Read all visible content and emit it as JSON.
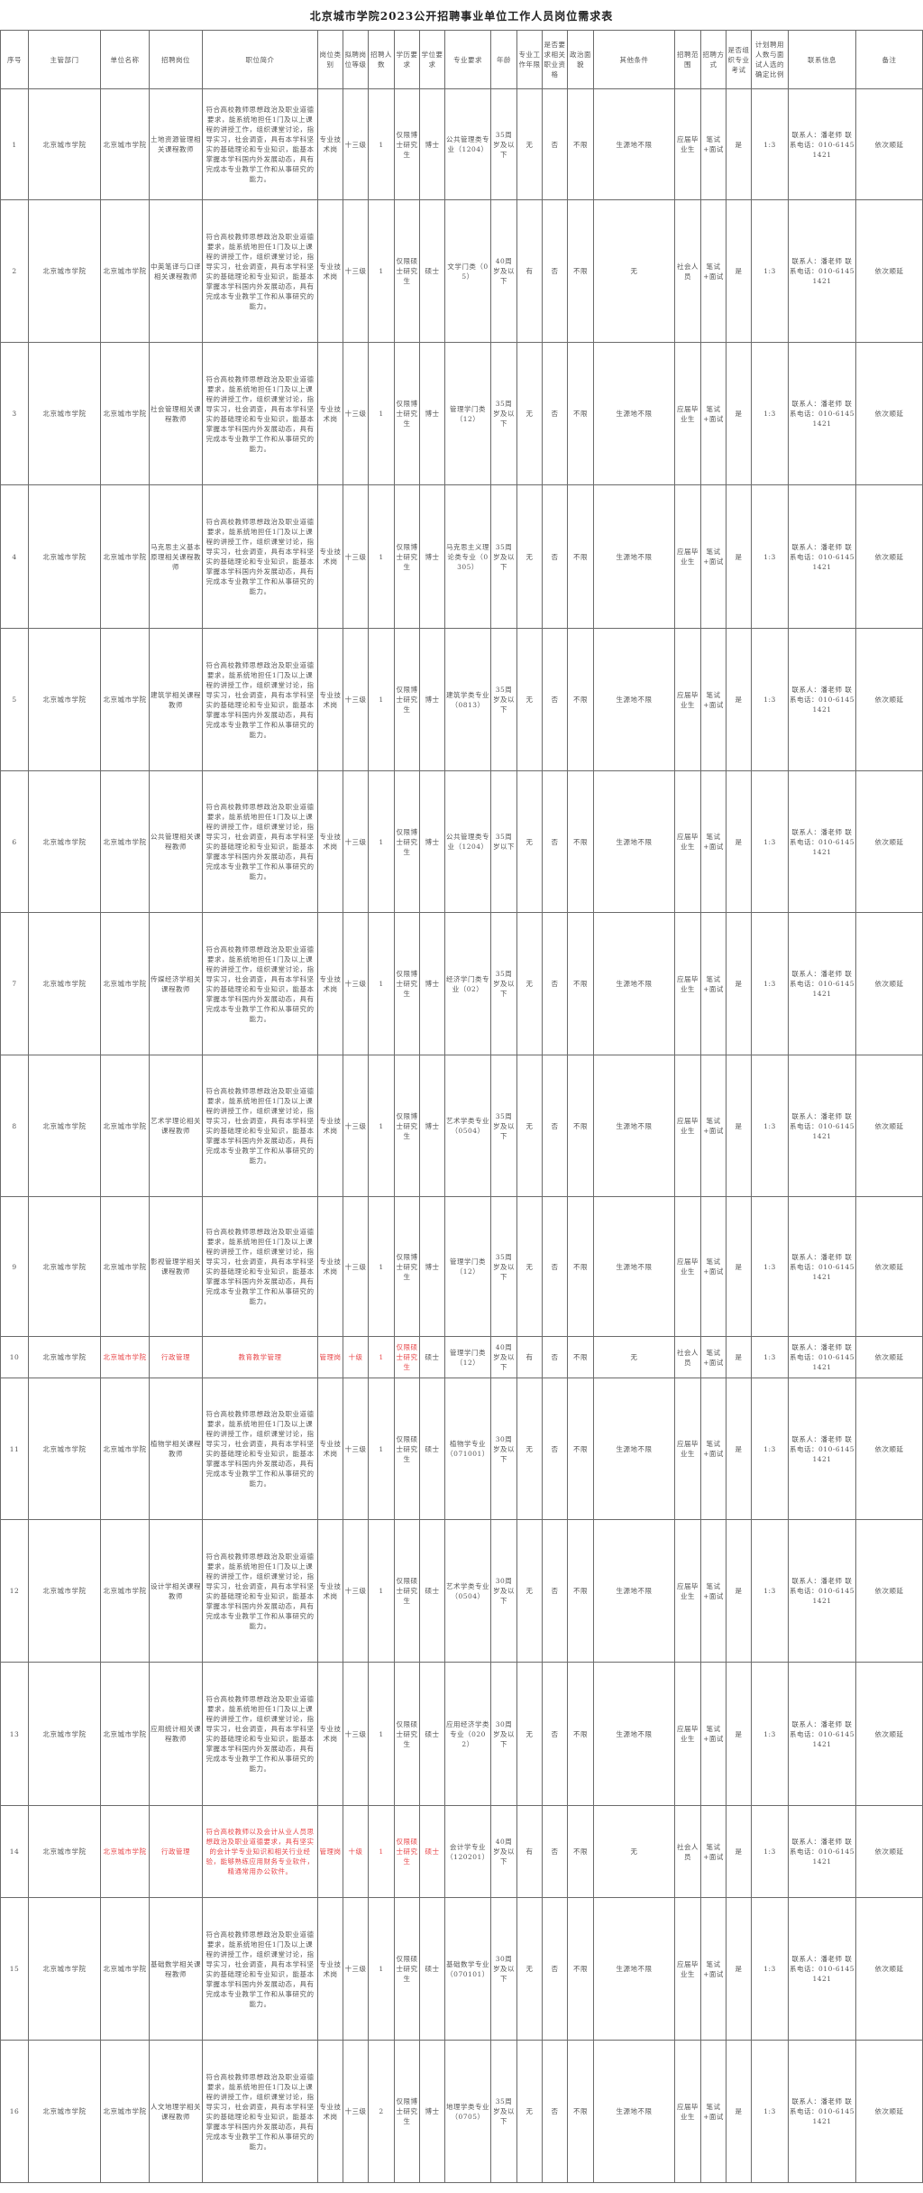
{
  "title": "北京城市学院2023公开招聘事业单位工作人员岗位需求表",
  "highlight_color": "#e8474a",
  "columns": [
    {
      "key": "no",
      "label": "序号"
    },
    {
      "key": "dept",
      "label": "主管部门"
    },
    {
      "key": "unit",
      "label": "单位名称"
    },
    {
      "key": "post",
      "label": "招聘岗位"
    },
    {
      "key": "intro",
      "label": "职位简介"
    },
    {
      "key": "category",
      "label": "岗位类别"
    },
    {
      "key": "level",
      "label": "拟聘岗位等级"
    },
    {
      "key": "count",
      "label": "招聘人数"
    },
    {
      "key": "education",
      "label": "学历要求"
    },
    {
      "key": "degree",
      "label": "学位要求"
    },
    {
      "key": "major",
      "label": "专业要求"
    },
    {
      "key": "age",
      "label": "年龄"
    },
    {
      "key": "years",
      "label": "专业工作年限"
    },
    {
      "key": "qualification",
      "label": "是否要求相关职业资格"
    },
    {
      "key": "political",
      "label": "政治面貌"
    },
    {
      "key": "other",
      "label": "其他条件"
    },
    {
      "key": "scope",
      "label": "招聘范围"
    },
    {
      "key": "method",
      "label": "招聘方式"
    },
    {
      "key": "exam",
      "label": "是否组织专业考试"
    },
    {
      "key": "ratio",
      "label": "计划聘用人数与面试人选的确定比例"
    },
    {
      "key": "contact",
      "label": "联系信息"
    },
    {
      "key": "remark",
      "label": "备注"
    }
  ],
  "common": {
    "dept": "北京城市学院",
    "unit": "北京城市学院",
    "teacher_intro": "符合高校教师思想政治及职业道德要求，能系统地担任1门及以上课程的讲授工作，组织课堂讨论，指导实习，社会调查，具有本学科坚实的基础理论和专业知识，能基本掌握本学科国内外发展动态，具有完成本专业教学工作和从事研究的能力。",
    "contact": "联系人：潘老师 联系电话：010-61451421",
    "remark": "依次顺延",
    "method": "笔试+面试",
    "exam": "是",
    "ratio": "1:3",
    "qualification": "否",
    "political": "不限"
  },
  "rows": [
    {
      "no": "1",
      "post": "土地资源管理相关课程教师",
      "intro": "符合高校教师思想政治及职业道德要求，能系统地担任1门及以上课程的讲授工作，组织课堂讨论，指导实习，社会调查，具有本学科坚实的基础理论和专业知识，能基本掌握本学科国内外发展动态，具有完成本专业教学工作和从事研究的能力。",
      "category": "专业技术岗",
      "level": "十三级",
      "count": "1",
      "education": "仅限博士研究生",
      "degree": "博士",
      "major": "公共管理类专业（1204）",
      "age": "35周岁及以下",
      "years": "无",
      "other": "生源地不限",
      "scope": "应届毕业生",
      "red": []
    },
    {
      "no": "2",
      "post": "中英笔译与口译相关课程教师",
      "intro": "符合高校教师思想政治及职业道德要求，能系统地担任1门及以上课程的讲授工作，组织课堂讨论，指导实习，社会调查，具有本学科坚实的基础理论和专业知识，能基本掌握本学科国内外发展动态，具有完成本专业教学工作和从事研究的能力。",
      "category": "专业技术岗",
      "level": "十三级",
      "count": "1",
      "education": "仅限硕士研究生",
      "degree": "硕士",
      "major": "文学门类（05）",
      "age": "40周岁及以下",
      "years": "有",
      "other": "无",
      "scope": "社会人员",
      "red": []
    },
    {
      "no": "3",
      "post": "社会管理相关课程教师",
      "intro": "符合高校教师思想政治及职业道德要求，能系统地担任1门及以上课程的讲授工作，组织课堂讨论，指导实习，社会调查，具有本学科坚实的基础理论和专业知识，能基本掌握本学科国内外发展动态，具有完成本专业教学工作和从事研究的能力。",
      "category": "专业技术岗",
      "level": "十三级",
      "count": "1",
      "education": "仅限博士研究生",
      "degree": "博士",
      "major": "管理学门类（12）",
      "age": "35周岁及以下",
      "years": "无",
      "other": "生源地不限",
      "scope": "应届毕业生",
      "red": []
    },
    {
      "no": "4",
      "post": "马克思主义基本原理相关课程教师",
      "intro": "符合高校教师思想政治及职业道德要求，能系统地担任1门及以上课程的讲授工作，组织课堂讨论，指导实习，社会调查，具有本学科坚实的基础理论和专业知识，能基本掌握本学科国内外发展动态，具有完成本专业教学工作和从事研究的能力。",
      "category": "专业技术岗",
      "level": "十三级",
      "count": "1",
      "education": "仅限博士研究生",
      "degree": "博士",
      "major": "马克思主义理论类专业（0305）",
      "age": "35周岁及以下",
      "years": "无",
      "other": "生源地不限",
      "scope": "应届毕业生",
      "red": []
    },
    {
      "no": "5",
      "post": "建筑学相关课程教师",
      "intro": "符合高校教师思想政治及职业道德要求，能系统地担任1门及以上课程的讲授工作，组织课堂讨论，指导实习，社会调查，具有本学科坚实的基础理论和专业知识，能基本掌握本学科国内外发展动态，具有完成本专业教学工作和从事研究的能力。",
      "category": "专业技术岗",
      "level": "十三级",
      "count": "1",
      "education": "仅限博士研究生",
      "degree": "博士",
      "major": "建筑学类专业（0813）",
      "age": "35周岁及以下",
      "years": "无",
      "other": "生源地不限",
      "scope": "应届毕业生",
      "red": []
    },
    {
      "no": "6",
      "post": "公共管理相关课程教师",
      "intro": "符合高校教师思想政治及职业道德要求，能系统地担任1门及以上课程的讲授工作，组织课堂讨论，指导实习，社会调查，具有本学科坚实的基础理论和专业知识，能基本掌握本学科国内外发展动态，具有完成本专业教学工作和从事研究的能力。",
      "category": "专业技术岗",
      "level": "十三级",
      "count": "1",
      "education": "仅限博士研究生",
      "degree": "博士",
      "major": "公共管理类专业（1204）",
      "age": "35周岁以下",
      "years": "无",
      "other": "生源地不限",
      "scope": "应届毕业生",
      "red": []
    },
    {
      "no": "7",
      "post": "传媒经济学相关课程教师",
      "intro": "符合高校教师思想政治及职业道德要求，能系统地担任1门及以上课程的讲授工作，组织课堂讨论，指导实习，社会调查，具有本学科坚实的基础理论和专业知识，能基本掌握本学科国内外发展动态，具有完成本专业教学工作和从事研究的能力。",
      "category": "专业技术岗",
      "level": "十三级",
      "count": "1",
      "education": "仅限博士研究生",
      "degree": "博士",
      "major": "经济学门类专业（02）",
      "age": "35周岁及以下",
      "years": "无",
      "other": "生源地不限",
      "scope": "应届毕业生",
      "red": []
    },
    {
      "no": "8",
      "post": "艺术学理论相关课程教师",
      "intro": "符合高校教师思想政治及职业道德要求，能系统地担任1门及以上课程的讲授工作，组织课堂讨论，指导实习，社会调查，具有本学科坚实的基础理论和专业知识，能基本掌握本学科国内外发展动态，具有完成本专业教学工作和从事研究的能力。",
      "category": "专业技术岗",
      "level": "十三级",
      "count": "1",
      "education": "仅限博士研究生",
      "degree": "博士",
      "major": "艺术学类专业（0504）",
      "age": "35周岁及以下",
      "years": "无",
      "other": "生源地不限",
      "scope": "应届毕业生",
      "red": []
    },
    {
      "no": "9",
      "post": "影视管理学相关课程教师",
      "intro": "符合高校教师思想政治及职业道德要求，能系统地担任1门及以上课程的讲授工作，组织课堂讨论，指导实习，社会调查，具有本学科坚实的基础理论和专业知识，能基本掌握本学科国内外发展动态，具有完成本专业教学工作和从事研究的能力。",
      "category": "专业技术岗",
      "level": "十三级",
      "count": "1",
      "education": "仅限博士研究生",
      "degree": "博士",
      "major": "管理学门类（12）",
      "age": "35周岁及以下",
      "years": "无",
      "other": "生源地不限",
      "scope": "应届毕业生",
      "red": []
    },
    {
      "no": "10",
      "post": "行政管理",
      "intro": "教育教学管理",
      "category": "管理岗",
      "level": "十级",
      "count": "1",
      "education": "仅限硕士研究生",
      "degree": "硕士",
      "major": "管理学门类（12）",
      "age": "40周岁及以下",
      "years": "有",
      "other": "无",
      "scope": "社会人员",
      "red": [
        "unit",
        "post",
        "intro",
        "category",
        "level",
        "count",
        "education"
      ]
    },
    {
      "no": "11",
      "post": "植物学相关课程教师",
      "intro": "符合高校教师思想政治及职业道德要求，能系统地担任1门及以上课程的讲授工作，组织课堂讨论，指导实习，社会调查，具有本学科坚实的基础理论和专业知识，能基本掌握本学科国内外发展动态，具有完成本专业教学工作和从事研究的能力。",
      "category": "专业技术岗",
      "level": "十三级",
      "count": "1",
      "education": "仅限硕士研究生",
      "degree": "硕士",
      "major": "植物学专业（071001）",
      "age": "30周岁及以下",
      "years": "无",
      "other": "生源地不限",
      "scope": "应届毕业生",
      "red": []
    },
    {
      "no": "12",
      "post": "设计学相关课程教师",
      "intro": "符合高校教师思想政治及职业道德要求，能系统地担任1门及以上课程的讲授工作，组织课堂讨论，指导实习，社会调查，具有本学科坚实的基础理论和专业知识，能基本掌握本学科国内外发展动态，具有完成本专业教学工作和从事研究的能力。",
      "category": "专业技术岗",
      "level": "十三级",
      "count": "1",
      "education": "仅限硕士研究生",
      "degree": "硕士",
      "major": "艺术学类专业（0504）",
      "age": "30周岁及以下",
      "years": "无",
      "other": "生源地不限",
      "scope": "应届毕业生",
      "red": []
    },
    {
      "no": "13",
      "post": "应用统计相关课程教师",
      "intro": "符合高校教师思想政治及职业道德要求，能系统地担任1门及以上课程的讲授工作，组织课堂讨论，指导实习，社会调查，具有本学科坚实的基础理论和专业知识，能基本掌握本学科国内外发展动态，具有完成本专业教学工作和从事研究的能力。",
      "category": "专业技术岗",
      "level": "十三级",
      "count": "1",
      "education": "仅限硕士研究生",
      "degree": "硕士",
      "major": "应用经济学类专业（0202）",
      "age": "30周岁及以下",
      "years": "无",
      "other": "生源地不限",
      "scope": "应届毕业生",
      "red": []
    },
    {
      "no": "14",
      "post": "行政管理",
      "intro": "符合高校教师以及会计从业人员思想政治及职业道德要求，具有坚实的会计学专业知识和相关行业经验，能够熟练应用财务专业软件，精通常用办公软件。",
      "category": "管理岗",
      "level": "十级",
      "count": "1",
      "education": "仅限硕士研究生",
      "degree": "硕士",
      "major": "会计学专业（120201）",
      "age": "40周岁及以下",
      "years": "有",
      "other": "无",
      "scope": "社会人员",
      "red": [
        "unit",
        "post",
        "intro",
        "category",
        "level",
        "count",
        "education",
        "degree"
      ]
    },
    {
      "no": "15",
      "post": "基础数学相关课程教师",
      "intro": "符合高校教师思想政治及职业道德要求，能系统地担任1门及以上课程的讲授工作，组织课堂讨论，指导实习，社会调查，具有本学科坚实的基础理论和专业知识，能基本掌握本学科国内外发展动态，具有完成本专业教学工作和从事研究的能力。",
      "category": "专业技术岗",
      "level": "十三级",
      "count": "1",
      "education": "仅限硕士研究生",
      "degree": "硕士",
      "major": "基础数学专业（070101）",
      "age": "30周岁及以下",
      "years": "无",
      "other": "生源地不限",
      "scope": "应届毕业生",
      "red": []
    },
    {
      "no": "16",
      "post": "人文地理学相关课程教师",
      "intro": "符合高校教师思想政治及职业道德要求，能系统地担任1门及以上课程的讲授工作，组织课堂讨论，指导实习，社会调查，具有本学科坚实的基础理论和专业知识，能基本掌握本学科国内外发展动态，具有完成本专业教学工作和从事研究的能力。",
      "category": "专业技术岗",
      "level": "十三级",
      "count": "2",
      "education": "仅限博士研究生",
      "degree": "博士",
      "major": "地理学类专业（0705）",
      "age": "35周岁及以下",
      "years": "无",
      "other": "生源地不限",
      "scope": "应届毕业生",
      "red": []
    }
  ]
}
